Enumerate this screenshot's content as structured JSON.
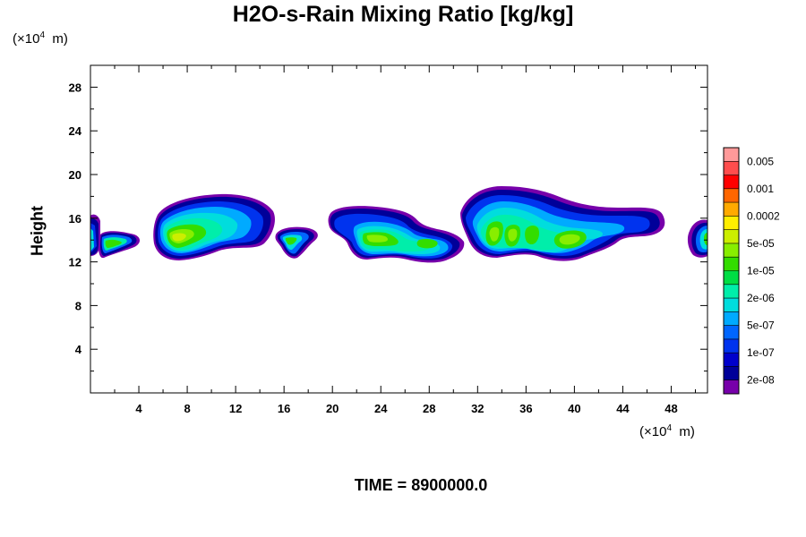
{
  "chart_data": {
    "type": "contour-filled",
    "title": "H2O-s-Rain Mixing Ratio [kg/kg]",
    "ylabel": "Height",
    "y_unit": {
      "prefix": "(×10",
      "exp": "4",
      "suffix": "  m)"
    },
    "x_unit": {
      "prefix": "(×10",
      "exp": "4",
      "suffix": "  m)"
    },
    "time_label": "TIME = 8900000.0",
    "xlim": [
      0,
      51
    ],
    "ylim": [
      0,
      30
    ],
    "x_ticks": [
      "4",
      "8",
      "12",
      "16",
      "20",
      "24",
      "28",
      "32",
      "36",
      "40",
      "44",
      "48"
    ],
    "x_tick_values": [
      4,
      8,
      12,
      16,
      20,
      24,
      28,
      32,
      36,
      40,
      44,
      48
    ],
    "y_ticks": [
      "4",
      "8",
      "12",
      "16",
      "20",
      "24",
      "28"
    ],
    "y_tick_values": [
      4,
      8,
      12,
      16,
      20,
      24,
      28
    ],
    "colorbar": {
      "colors": [
        "#ff9999",
        "#ff4d4d",
        "#ff0000",
        "#ff6600",
        "#ffaa00",
        "#ffee00",
        "#ccee00",
        "#88ee00",
        "#33dd00",
        "#00dd44",
        "#00eeaa",
        "#00dddd",
        "#00aaff",
        "#0066ff",
        "#0033ee",
        "#0000cc",
        "#000099",
        "#7700aa"
      ],
      "labels": [
        "0.005",
        "0.001",
        "0.0002",
        "5e-05",
        "1e-05",
        "2e-06",
        "5e-07",
        "1e-07",
        "2e-08"
      ]
    },
    "cells": [
      {
        "x": 1.7,
        "y": 14.0,
        "w": 1.9,
        "h": 1.8
      },
      {
        "x": 9.2,
        "y": 15.2,
        "w": 4.0,
        "h": 2.6
      },
      {
        "x": 16.9,
        "y": 14.1,
        "w": 1.2,
        "h": 1.2
      },
      {
        "x": 24.6,
        "y": 14.8,
        "w": 4.0,
        "h": 1.9
      },
      {
        "x": 38.8,
        "y": 15.6,
        "w": 7.0,
        "h": 2.8
      },
      {
        "x": 50.6,
        "y": 14.0,
        "w": 1.0,
        "h": 1.6
      }
    ]
  }
}
